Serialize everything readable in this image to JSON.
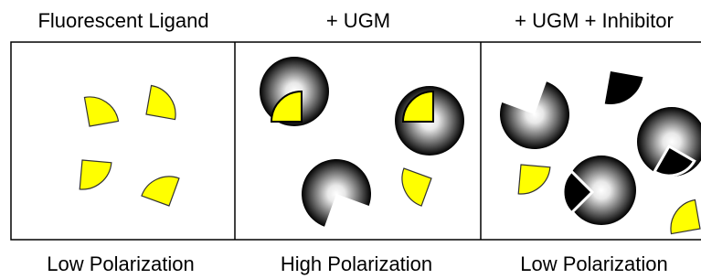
{
  "panels": [
    {
      "title": "Fluorescent Ligand",
      "caption": "Low Polarization"
    },
    {
      "title": "+ UGM",
      "caption": "High Polarization"
    },
    {
      "title": "+ UGM + Inhibitor",
      "caption": "Low Polarization"
    }
  ]
}
